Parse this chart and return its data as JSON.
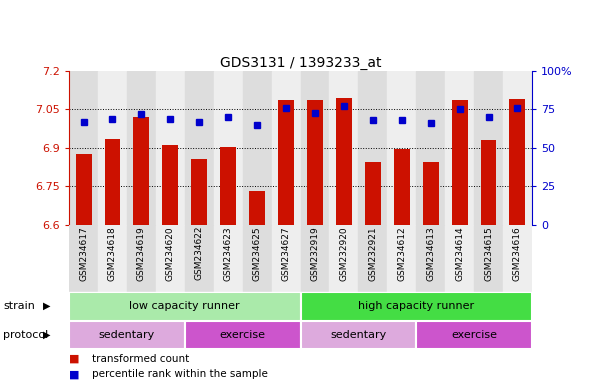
{
  "title": "GDS3131 / 1393233_at",
  "samples": [
    "GSM234617",
    "GSM234618",
    "GSM234619",
    "GSM234620",
    "GSM234622",
    "GSM234623",
    "GSM234625",
    "GSM234627",
    "GSM232919",
    "GSM232920",
    "GSM232921",
    "GSM234612",
    "GSM234613",
    "GSM234614",
    "GSM234615",
    "GSM234616"
  ],
  "red_values": [
    6.875,
    6.935,
    7.02,
    6.91,
    6.855,
    6.905,
    6.73,
    7.085,
    7.085,
    7.095,
    6.845,
    6.895,
    6.845,
    7.085,
    6.93,
    7.09
  ],
  "blue_values_pct": [
    67,
    69,
    72,
    69,
    67,
    70,
    65,
    76,
    73,
    77,
    68,
    68,
    66,
    75,
    70,
    76
  ],
  "ymin": 6.6,
  "ymax": 7.2,
  "yticks": [
    6.6,
    6.75,
    6.9,
    7.05,
    7.2
  ],
  "ytick_labels": [
    "6.6",
    "6.75",
    "6.9",
    "7.05",
    "7.2"
  ],
  "y2min": 0,
  "y2max": 100,
  "y2ticks": [
    0,
    25,
    50,
    75,
    100
  ],
  "y2tick_labels": [
    "0",
    "25",
    "50",
    "75",
    "100%"
  ],
  "bar_color": "#cc1100",
  "dot_color": "#0000cc",
  "strain_groups": [
    {
      "label": "low capacity runner",
      "start": 0,
      "end": 8,
      "color": "#aaeaaa"
    },
    {
      "label": "high capacity runner",
      "start": 8,
      "end": 16,
      "color": "#44dd44"
    }
  ],
  "protocol_groups": [
    {
      "label": "sedentary",
      "start": 0,
      "end": 4,
      "color": "#ddaadd"
    },
    {
      "label": "exercise",
      "start": 4,
      "end": 8,
      "color": "#cc55cc"
    },
    {
      "label": "sedentary",
      "start": 8,
      "end": 12,
      "color": "#ddaadd"
    },
    {
      "label": "exercise",
      "start": 12,
      "end": 16,
      "color": "#cc55cc"
    }
  ],
  "legend_red_label": "transformed count",
  "legend_blue_label": "percentile rank within the sample",
  "tick_color_left": "#cc1100",
  "tick_color_right": "#0000cc",
  "col_bg_even": "#dddddd",
  "col_bg_odd": "#eeeeee"
}
